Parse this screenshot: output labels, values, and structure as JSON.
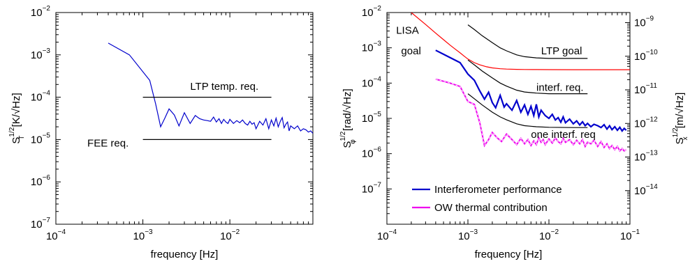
{
  "chart_data": [
    {
      "type": "line",
      "xlabel": "frequency [Hz]",
      "ylabel": {
        "base": "S",
        "sup": "1/2",
        "sub": "T",
        "units": " [K/√Hz]"
      },
      "xscale": "log",
      "yscale": "log",
      "xlim": [
        0.0001,
        0.09
      ],
      "ylim": [
        1e-07,
        0.01
      ],
      "xticks": [
        {
          "value": 0.0001,
          "base": "10",
          "exp": "−4"
        },
        {
          "value": 0.001,
          "base": "10",
          "exp": "−3"
        },
        {
          "value": 0.01,
          "base": "10",
          "exp": "−2"
        }
      ],
      "yticks": [
        {
          "value": 1e-07,
          "base": "10",
          "exp": "−7"
        },
        {
          "value": 1e-06,
          "base": "10",
          "exp": "−6"
        },
        {
          "value": 1e-05,
          "base": "10",
          "exp": "−5"
        },
        {
          "value": 0.0001,
          "base": "10",
          "exp": "−4"
        },
        {
          "value": 0.001,
          "base": "10",
          "exp": "−3"
        },
        {
          "value": 0.01,
          "base": "10",
          "exp": "−2"
        }
      ],
      "grid": false,
      "series": [
        {
          "color": "#0000cc",
          "x": [
            0.0004,
            0.0007,
            0.0012,
            0.0014,
            0.0016,
            0.0018,
            0.002,
            0.0023,
            0.0026,
            0.003,
            0.0035,
            0.004,
            0.0045,
            0.005,
            0.0055,
            0.006,
            0.0065,
            0.007,
            0.0075,
            0.008,
            0.0085,
            0.009,
            0.0095,
            0.01,
            0.011,
            0.012,
            0.013,
            0.014,
            0.015,
            0.016,
            0.017,
            0.018,
            0.019,
            0.02,
            0.022,
            0.024,
            0.026,
            0.028,
            0.03,
            0.032,
            0.034,
            0.036,
            0.038,
            0.04,
            0.042,
            0.044,
            0.046,
            0.048,
            0.05,
            0.055,
            0.06,
            0.065,
            0.07,
            0.075,
            0.08,
            0.085,
            0.09
          ],
          "y": [
            0.0019,
            0.001,
            0.00025,
            7e-05,
            2e-05,
            3.3e-05,
            5.3e-05,
            3.8e-05,
            2.1e-05,
            4.3e-05,
            2.4e-05,
            3.7e-05,
            3.1e-05,
            2.9e-05,
            2.8e-05,
            2.7e-05,
            3.4e-05,
            2.6e-05,
            3.1e-05,
            2.4e-05,
            3e-05,
            2.6e-05,
            2.4e-05,
            3e-05,
            2.4e-05,
            2.8e-05,
            2.5e-05,
            2.9e-05,
            2.4e-05,
            2.2e-05,
            2.7e-05,
            2.3e-05,
            2.5e-05,
            1.8e-05,
            2.7e-05,
            2.2e-05,
            3.1e-05,
            1.8e-05,
            2.9e-05,
            2.1e-05,
            3.2e-05,
            2e-05,
            2.7e-05,
            3.3e-05,
            1.9e-05,
            2.3e-05,
            2.6e-05,
            1.6e-05,
            2.1e-05,
            1.8e-05,
            2.1e-05,
            1.6e-05,
            1.8e-05,
            1.7e-05,
            1.5e-05,
            1.6e-05,
            1.4e-05
          ]
        },
        {
          "color": "#000000",
          "x": [
            0.001,
            0.03
          ],
          "y": [
            0.0001,
            0.0001
          ]
        },
        {
          "color": "#000000",
          "x": [
            0.001,
            0.03
          ],
          "y": [
            1e-05,
            1e-05
          ]
        }
      ],
      "annotations": [
        {
          "text": "LTP temp. req.",
          "x": 0.0035,
          "y": 0.00015
        },
        {
          "text": "FEE req.",
          "x": 0.00023,
          "y": 6.8e-06
        }
      ]
    },
    {
      "type": "line",
      "xlabel": "frequency [Hz]",
      "ylabel": {
        "base": "S",
        "sup": "1/2",
        "sub": "φ",
        "units": " [rad/√Hz]"
      },
      "ylabel_right": {
        "base": "S",
        "sup": "1/2",
        "sub": "x",
        "units": " [m/√Hz]"
      },
      "xscale": "log",
      "yscale": "log",
      "xlim": [
        0.0001,
        0.1
      ],
      "ylim": [
        1e-08,
        0.01
      ],
      "ylim_right": [
        1e-15,
        2e-09
      ],
      "xticks": [
        {
          "value": 0.0001,
          "base": "10",
          "exp": "−4"
        },
        {
          "value": 0.001,
          "base": "10",
          "exp": "−3"
        },
        {
          "value": 0.01,
          "base": "10",
          "exp": "−2"
        },
        {
          "value": 0.1,
          "base": "10",
          "exp": "−1"
        }
      ],
      "yticks": [
        {
          "value": 1e-07,
          "base": "10",
          "exp": "−7"
        },
        {
          "value": 1e-06,
          "base": "10",
          "exp": "−6"
        },
        {
          "value": 1e-05,
          "base": "10",
          "exp": "−5"
        },
        {
          "value": 0.0001,
          "base": "10",
          "exp": "−4"
        },
        {
          "value": 0.001,
          "base": "10",
          "exp": "−3"
        },
        {
          "value": 0.01,
          "base": "10",
          "exp": "−2"
        }
      ],
      "yticks_right": [
        {
          "value": 1e-14,
          "base": "10",
          "exp": "−14"
        },
        {
          "value": 1e-13,
          "base": "10",
          "exp": "−13"
        },
        {
          "value": 1e-12,
          "base": "10",
          "exp": "−12"
        },
        {
          "value": 1e-11,
          "base": "10",
          "exp": "−11"
        },
        {
          "value": 1e-10,
          "base": "10",
          "exp": "−10"
        },
        {
          "value": 1e-09,
          "base": "10",
          "exp": "−9"
        }
      ],
      "grid": false,
      "legend_position": "bottom-left",
      "series": [
        {
          "name": "Interferometer performance",
          "color": "#0000cc",
          "legend": true,
          "x": [
            0.0004,
            0.0008,
            0.001,
            0.0012,
            0.0014,
            0.0016,
            0.0018,
            0.002,
            0.0022,
            0.0025,
            0.0028,
            0.003,
            0.0035,
            0.004,
            0.0045,
            0.005,
            0.0055,
            0.006,
            0.0065,
            0.007,
            0.0075,
            0.008,
            0.009,
            0.01,
            0.011,
            0.012,
            0.013,
            0.014,
            0.015,
            0.016,
            0.018,
            0.02,
            0.022,
            0.024,
            0.026,
            0.028,
            0.03,
            0.033,
            0.036,
            0.04,
            0.044,
            0.048,
            0.052,
            0.056,
            0.06,
            0.065,
            0.07,
            0.075,
            0.08,
            0.085,
            0.09
          ],
          "y": [
            0.00085,
            0.00038,
            0.00018,
            0.00012,
            6e-05,
            3.5e-05,
            5.5e-05,
            2.8e-05,
            2e-05,
            4.5e-05,
            2.1e-05,
            2.6e-05,
            1.7e-05,
            3.2e-05,
            1.5e-05,
            2.4e-05,
            1.3e-05,
            2.2e-05,
            1.2e-05,
            2.5e-05,
            1.1e-05,
            1.7e-05,
            1.2e-05,
            1e-05,
            1.3e-05,
            9e-06,
            1.05e-05,
            7.8e-06,
            1.1e-05,
            7.5e-06,
            9.5e-06,
            7e-06,
            8.5e-06,
            6.5e-06,
            8e-06,
            6.2e-06,
            7.2e-06,
            5.8e-06,
            6.8e-06,
            6.2e-06,
            5.5e-06,
            6.6e-06,
            5e-06,
            6.2e-06,
            4.8e-06,
            5.8e-06,
            4.6e-06,
            5.6e-06,
            4.4e-06,
            5.2e-06,
            4.6e-06
          ]
        },
        {
          "name": "OW thermal contribution",
          "color": "#ee00ee",
          "legend": true,
          "x": [
            0.0004,
            0.0006,
            0.0008,
            0.001,
            0.0012,
            0.0014,
            0.0016,
            0.0018,
            0.002,
            0.0023,
            0.0026,
            0.003,
            0.0035,
            0.004,
            0.0045,
            0.005,
            0.0055,
            0.006,
            0.0065,
            0.007,
            0.0075,
            0.008,
            0.0085,
            0.009,
            0.01,
            0.011,
            0.012,
            0.013,
            0.014,
            0.015,
            0.016,
            0.018,
            0.02,
            0.022,
            0.024,
            0.026,
            0.028,
            0.03,
            0.033,
            0.036,
            0.04,
            0.044,
            0.048,
            0.052,
            0.056,
            0.06,
            0.065,
            0.07,
            0.075,
            0.08,
            0.085,
            0.09
          ],
          "y": [
            0.00013,
            0.0001,
            8e-05,
            3e-05,
            2.5e-05,
            7.5e-06,
            1.7e-06,
            2.5e-06,
            4e-06,
            2.8e-06,
            2.2e-06,
            3.6e-06,
            2.5e-06,
            1.8e-06,
            2.7e-06,
            1.9e-06,
            2.5e-06,
            1.7e-06,
            2.3e-06,
            1.8e-06,
            2.8e-06,
            2.1e-06,
            2.5e-06,
            1.8e-06,
            2.6e-06,
            2e-06,
            2.8e-06,
            2.2e-06,
            1.9e-06,
            2.7e-06,
            2.1e-06,
            2.5e-06,
            1.8e-06,
            2.4e-06,
            1.9e-06,
            2.5e-06,
            1.6e-06,
            2.1e-06,
            1.9e-06,
            2.4e-06,
            1.6e-06,
            2.2e-06,
            1.5e-06,
            1.9e-06,
            1.4e-06,
            1.7e-06,
            1.3e-06,
            1.6e-06,
            1.2e-06,
            1.4e-06,
            1.2e-06,
            1.3e-06
          ]
        },
        {
          "name": "LISA goal",
          "color": "#ff0000",
          "legend": false,
          "x": [
            0.0002,
            0.0003,
            0.0004,
            0.0005,
            0.0006,
            0.0007,
            0.0008,
            0.0009,
            0.001,
            0.0012,
            0.0014,
            0.0017,
            0.002,
            0.0025,
            0.003,
            0.004,
            0.005,
            0.007,
            0.01,
            0.02,
            0.05,
            0.1
          ],
          "y": [
            0.01,
            0.0046,
            0.0026,
            0.0017,
            0.0012,
            0.00091,
            0.00072,
            0.00058,
            0.00048,
            0.00038,
            0.00033,
            0.00029,
            0.00027,
            0.000255,
            0.00025,
            0.000245,
            0.000243,
            0.000242,
            0.000241,
            0.00024,
            0.00024,
            0.00024
          ]
        },
        {
          "name": "LTP goal",
          "color": "#000000",
          "legend": false,
          "x": [
            0.001,
            0.0012,
            0.0015,
            0.002,
            0.0025,
            0.003,
            0.004,
            0.005,
            0.007,
            0.01,
            0.02,
            0.03
          ],
          "y": [
            0.0045,
            0.0033,
            0.0022,
            0.0014,
            0.001,
            0.00082,
            0.00063,
            0.00056,
            0.00052,
            0.0005,
            0.0005,
            0.0005
          ]
        },
        {
          "name": "interf. req.",
          "color": "#000000",
          "legend": false,
          "x": [
            0.001,
            0.0012,
            0.0015,
            0.002,
            0.0025,
            0.003,
            0.004,
            0.005,
            0.007,
            0.01,
            0.02,
            0.03
          ],
          "y": [
            0.00045,
            0.00033,
            0.00022,
            0.00014,
            0.0001,
            8.2e-05,
            6.3e-05,
            5.6e-05,
            5.2e-05,
            5e-05,
            5e-05,
            5e-05
          ]
        },
        {
          "name": "one interf. req",
          "color": "#000000",
          "legend": false,
          "x": [
            0.001,
            0.0012,
            0.0015,
            0.002,
            0.0025,
            0.003,
            0.004,
            0.005,
            0.007,
            0.01,
            0.02,
            0.03
          ],
          "y": [
            5e-05,
            3.6e-05,
            2.4e-05,
            1.5e-05,
            1.1e-05,
            9.1e-06,
            7e-06,
            6.2e-06,
            5.8e-06,
            5.6e-06,
            5.5e-06,
            5.5e-06
          ]
        }
      ],
      "annotations": [
        {
          "text": "LISA",
          "x": 0.00013,
          "y": 0.0025,
          "color": "#ff0000"
        },
        {
          "text": "goal",
          "x": 0.00015,
          "y": 0.00065,
          "color": "#ff0000"
        },
        {
          "text": "LTP goal",
          "x": 0.008,
          "y": 0.00065,
          "color": "#000000"
        },
        {
          "text": "interf. req.",
          "x": 0.007,
          "y": 6e-05,
          "color": "#000000"
        },
        {
          "text": "one interf. req",
          "x": 0.006,
          "y": 2.8e-06,
          "color": "#000000"
        }
      ]
    }
  ]
}
